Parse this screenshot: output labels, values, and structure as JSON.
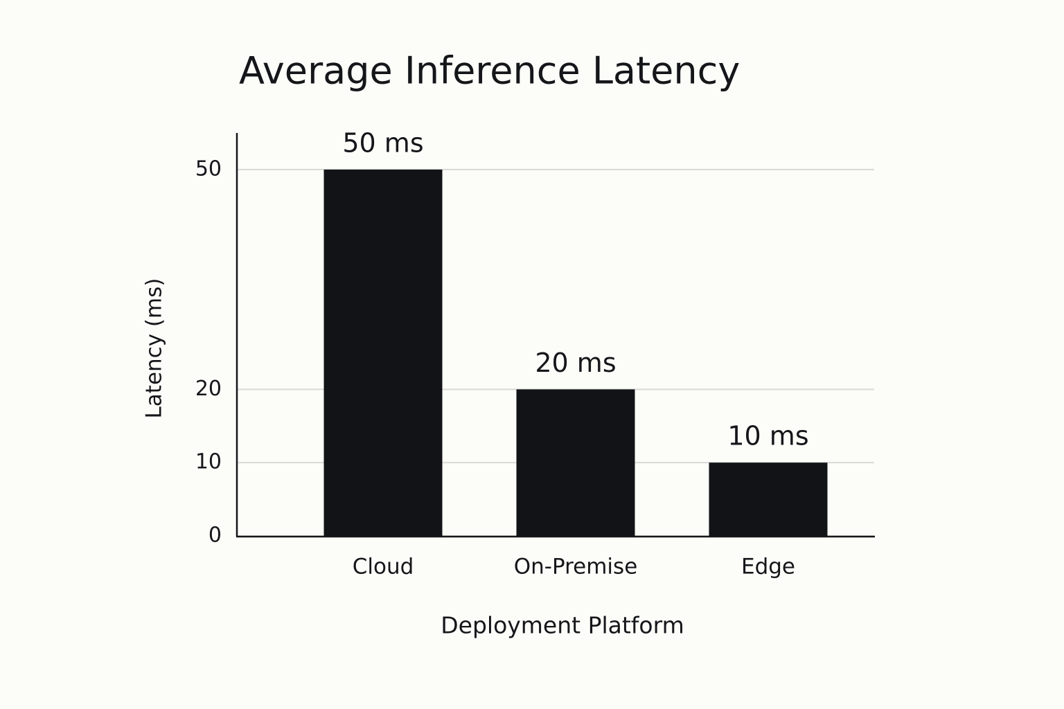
{
  "chart_data": {
    "type": "bar",
    "title": "Average Inference Latency",
    "x_label": "Deployment Platform",
    "y_label": "Latency (ms)",
    "categories": [
      "Cloud",
      "On-Premise",
      "Edge"
    ],
    "values": [
      50,
      20,
      10
    ],
    "value_labels": [
      "50 ms",
      "20 ms",
      "10 ms"
    ],
    "color": "#111317",
    "ylim": [
      0,
      55
    ],
    "yticks": [
      0,
      10,
      20,
      50
    ],
    "grid": true
  }
}
